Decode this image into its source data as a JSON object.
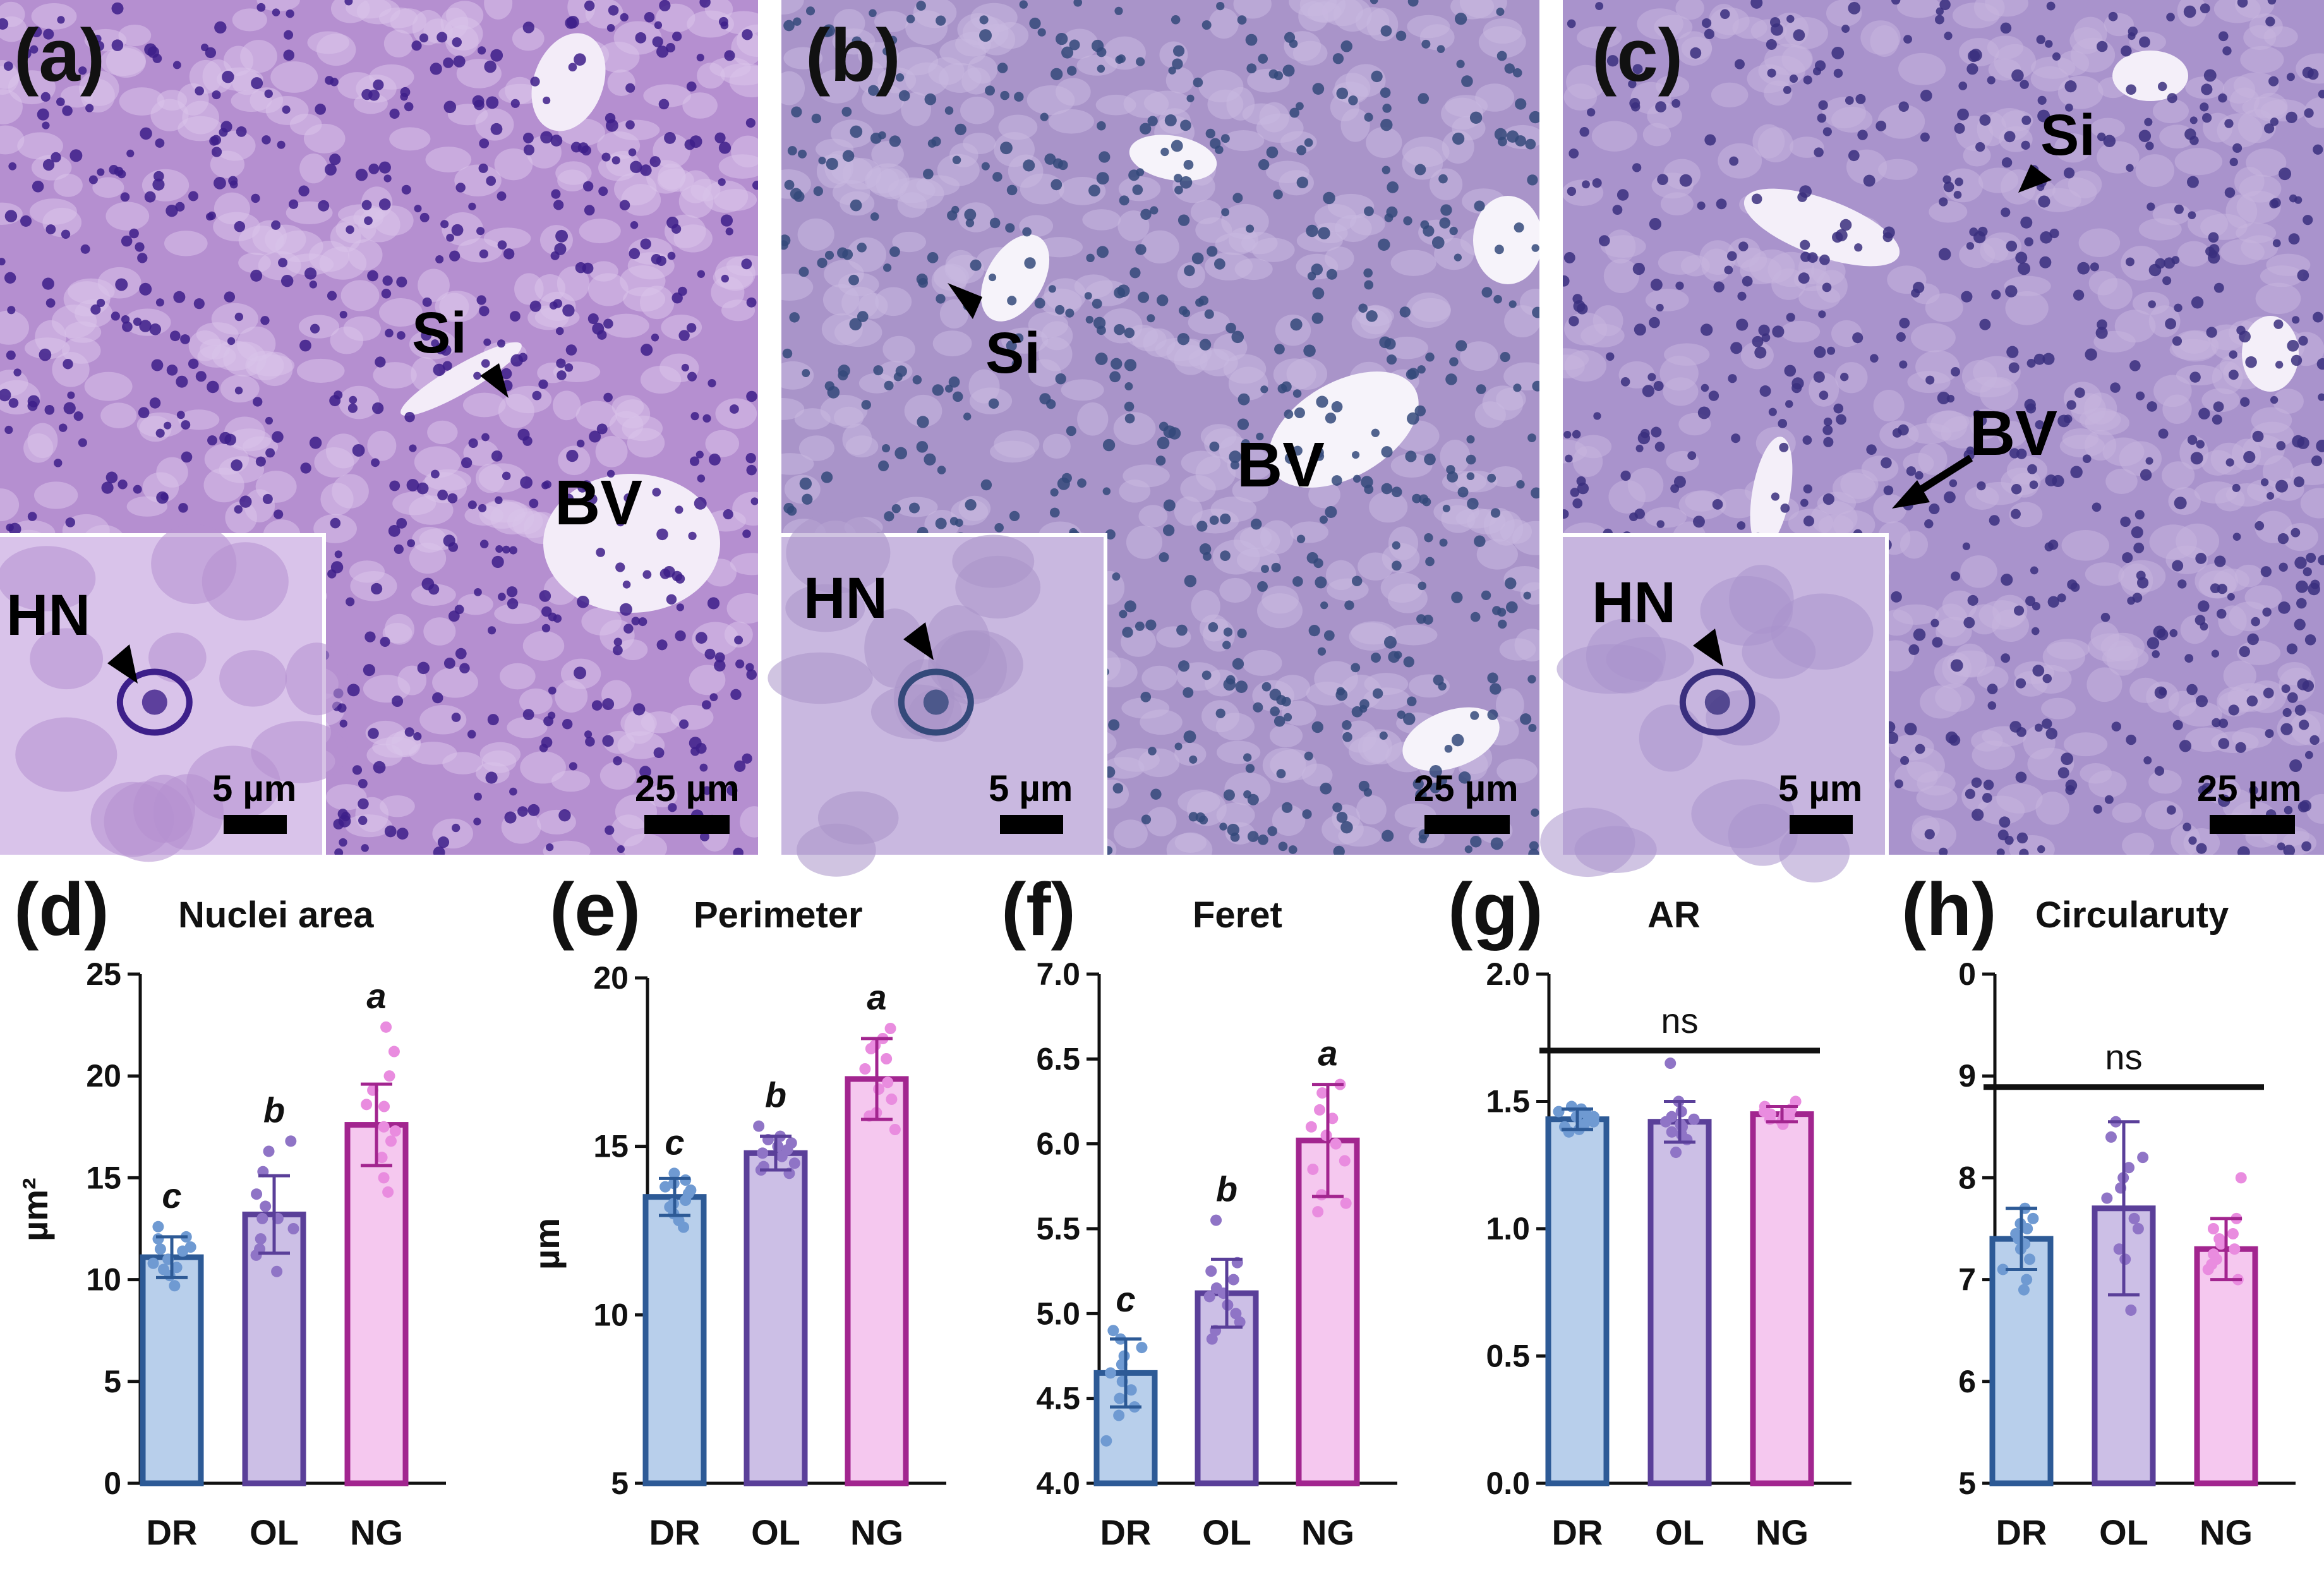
{
  "micrographs": [
    {
      "label": "(a)",
      "annotations": {
        "si": "Si",
        "bv": "BV",
        "hn": "HN"
      },
      "scale_main": "25 µm",
      "scale_inset": "5 µm",
      "colors": {
        "bg": "#b58fd0",
        "cell": "#d9c3ea",
        "nucleus": "#3d1f8a",
        "vessel": "#f3ecf8"
      }
    },
    {
      "label": "(b)",
      "annotations": {
        "si": "Si",
        "bv": "BV",
        "hn": "HN"
      },
      "scale_main": "25 µm",
      "scale_inset": "5 µm",
      "colors": {
        "bg": "#a994c9",
        "cell": "#c9b8e0",
        "nucleus": "#34497a",
        "vessel": "#f6f3fa"
      }
    },
    {
      "label": "(c)",
      "annotations": {
        "si": "Si",
        "bv": "BV",
        "hn": "HN"
      },
      "scale_main": "25 µm",
      "scale_inset": "5 µm",
      "colors": {
        "bg": "#a993cc",
        "cell": "#c7b5df",
        "nucleus": "#3a2f7e",
        "vessel": "#f4eff9"
      }
    }
  ],
  "palette": {
    "DR": {
      "fill": "#b8cfeb",
      "stroke": "#2d5a96",
      "dot": "#6f9ad2"
    },
    "OL": {
      "fill": "#ccbfe6",
      "stroke": "#5a3f99",
      "dot": "#8f74c6"
    },
    "NG": {
      "fill": "#f5c8ef",
      "stroke": "#a2258f",
      "dot": "#e98cdf"
    }
  },
  "chart_data": [
    {
      "type": "bar",
      "panel": "(d)",
      "title": "Nuclei area",
      "ylabel": "µm²",
      "categories": [
        "DR",
        "OL",
        "NG"
      ],
      "values": [
        11.1,
        13.2,
        17.6
      ],
      "errors": [
        1.0,
        1.9,
        2.0
      ],
      "ylim": [
        0,
        25
      ],
      "yticks": [
        "0",
        "5",
        "10",
        "15",
        "20",
        "25"
      ],
      "letters": [
        "c",
        "b",
        "a"
      ],
      "points": [
        [
          10.2,
          10.6,
          11.5,
          11.0,
          12.0,
          10.8,
          11.4,
          9.7,
          12.1,
          11.6,
          10.5,
          12.6
        ],
        [
          10.4,
          11.5,
          13.0,
          14.2,
          12.5,
          15.3,
          16.3,
          12.0,
          13.6,
          16.8,
          11.2,
          13.0
        ],
        [
          15.0,
          16.0,
          17.3,
          18.5,
          20.0,
          19.3,
          21.2,
          22.4,
          17.5,
          16.8,
          14.3,
          18.6
        ]
      ],
      "ns": ""
    },
    {
      "type": "bar",
      "panel": "(e)",
      "title": "Perimeter",
      "ylabel": "µm",
      "categories": [
        "DR",
        "OL",
        "NG"
      ],
      "values": [
        13.5,
        14.8,
        17.0
      ],
      "errors": [
        0.55,
        0.5,
        1.2
      ],
      "ylim": [
        5,
        20
      ],
      "yticks": [
        "5",
        "10",
        "15",
        "20"
      ],
      "letters": [
        "c",
        "b",
        "a"
      ],
      "points": [
        [
          12.6,
          13.0,
          13.4,
          13.7,
          14.0,
          13.3,
          13.9,
          12.8,
          14.2,
          13.6,
          13.2,
          13.8
        ],
        [
          14.2,
          14.5,
          14.8,
          15.0,
          15.3,
          14.7,
          15.6,
          14.4,
          15.1,
          14.9,
          14.3,
          15.2
        ],
        [
          15.5,
          16.0,
          16.7,
          17.3,
          18.0,
          18.5,
          18.2,
          16.9,
          15.9,
          17.6,
          16.4,
          17.9
        ]
      ],
      "ns": ""
    },
    {
      "type": "bar",
      "panel": "(f)",
      "title": "Feret",
      "ylabel": "",
      "categories": [
        "DR",
        "OL",
        "NG"
      ],
      "values": [
        4.65,
        5.12,
        6.02
      ],
      "errors": [
        0.2,
        0.2,
        0.33
      ],
      "ylim": [
        4.0,
        7.0
      ],
      "yticks": [
        "4.0",
        "4.5",
        "5.0",
        "5.5",
        "6.0",
        "6.5",
        "7.0"
      ],
      "letters": [
        "c",
        "b",
        "a"
      ],
      "points": [
        [
          4.25,
          4.4,
          4.5,
          4.6,
          4.7,
          4.8,
          4.9,
          4.55,
          4.65,
          4.45,
          4.75,
          4.85
        ],
        [
          4.85,
          4.95,
          5.0,
          5.1,
          5.15,
          5.25,
          5.3,
          5.55,
          5.05,
          5.2,
          4.9,
          5.12
        ],
        [
          5.6,
          5.7,
          5.85,
          6.0,
          6.1,
          6.2,
          6.3,
          6.35,
          5.9,
          6.15,
          5.65,
          6.05
        ]
      ],
      "ns": ""
    },
    {
      "type": "bar",
      "panel": "(g)",
      "title": "AR",
      "ylabel": "",
      "categories": [
        "DR",
        "OL",
        "NG"
      ],
      "values": [
        1.43,
        1.42,
        1.45
      ],
      "errors": [
        0.04,
        0.08,
        0.03
      ],
      "ylim": [
        0.0,
        2.0
      ],
      "yticks": [
        "0.0",
        "0.5",
        "1.0",
        "1.5",
        "2.0"
      ],
      "letters": [
        "",
        "",
        ""
      ],
      "points": [
        [
          1.38,
          1.4,
          1.42,
          1.44,
          1.46,
          1.48,
          1.43,
          1.41,
          1.45,
          1.47,
          1.39,
          1.44
        ],
        [
          1.3,
          1.35,
          1.38,
          1.4,
          1.43,
          1.46,
          1.5,
          1.65,
          1.42,
          1.37,
          1.44,
          1.41
        ],
        [
          1.41,
          1.43,
          1.44,
          1.45,
          1.46,
          1.47,
          1.48,
          1.5,
          1.44,
          1.42,
          1.46,
          1.45
        ]
      ],
      "ns": "ns"
    },
    {
      "type": "bar",
      "panel": "(h)",
      "title": "Circularuty",
      "ylabel": "",
      "categories": [
        "DR",
        "OL",
        "NG"
      ],
      "values": [
        0.74,
        0.77,
        0.73
      ],
      "errors": [
        0.03,
        0.085,
        0.03
      ],
      "ylim": [
        0.5,
        1.0
      ],
      "yticks": [
        "5",
        "6",
        "7",
        "8",
        "9",
        "0"
      ],
      "letters": [
        "",
        "",
        ""
      ],
      "points": [
        [
          0.69,
          0.71,
          0.73,
          0.74,
          0.75,
          0.76,
          0.77,
          0.72,
          0.745,
          0.755,
          0.7,
          0.735
        ],
        [
          0.67,
          0.72,
          0.75,
          0.78,
          0.8,
          0.82,
          0.84,
          0.855,
          0.76,
          0.79,
          0.73,
          0.81
        ],
        [
          0.7,
          0.71,
          0.72,
          0.73,
          0.74,
          0.75,
          0.76,
          0.8,
          0.725,
          0.735,
          0.715,
          0.745
        ]
      ],
      "ns": "ns"
    }
  ]
}
